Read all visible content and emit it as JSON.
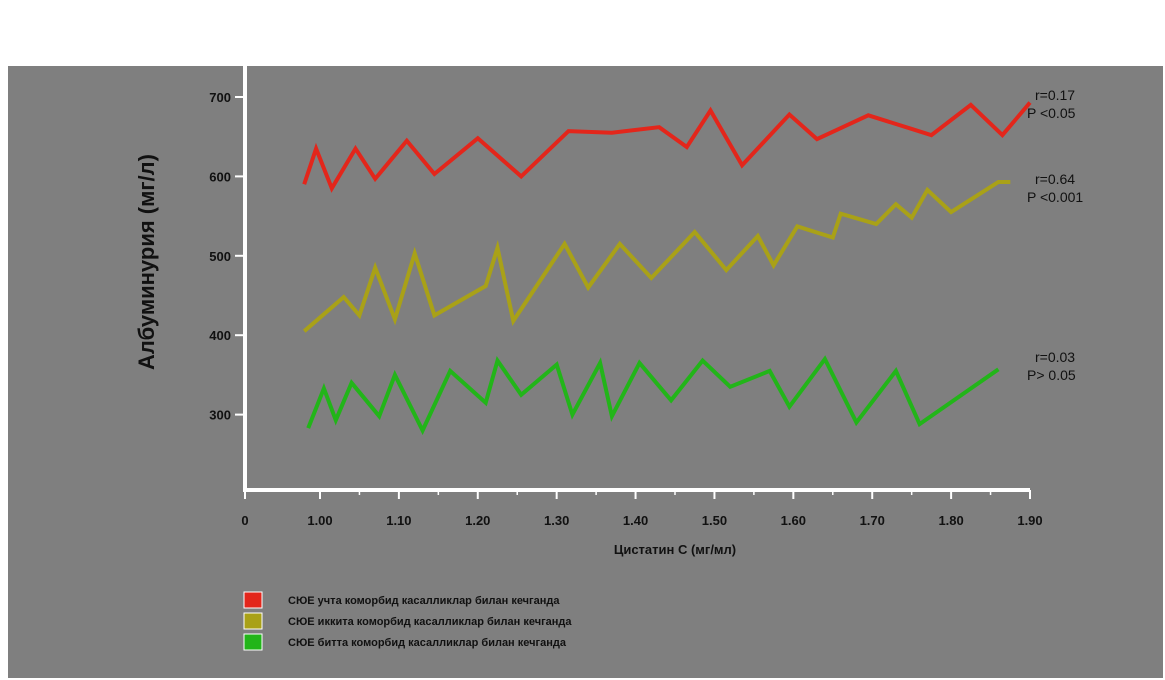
{
  "chart_data": {
    "type": "line",
    "xlabel": "Цистатин С (мг/мл)",
    "ylabel": "Албуминурия (мг/л)",
    "xlim": [
      0.97,
      1.9
    ],
    "ylim": [
      200,
      700
    ],
    "x_tick_labels": [
      "0",
      "1.00",
      "1.10",
      "1.20",
      "1.30",
      "1.40",
      "1.50",
      "1.60",
      "1.70",
      "1.80",
      "1.90"
    ],
    "y_tick_labels": [
      "700",
      "600",
      "500",
      "400",
      "300"
    ],
    "series": [
      {
        "name": "СЮЕ учта коморбид касалликлар билан кечганда",
        "color": "#e3261b",
        "annotation": [
          "r=0.17",
          "P <0.05"
        ],
        "points": [
          [
            0.98,
            590
          ],
          [
            0.995,
            635
          ],
          [
            1.015,
            585
          ],
          [
            1.045,
            635
          ],
          [
            1.07,
            597
          ],
          [
            1.11,
            645
          ],
          [
            1.145,
            603
          ],
          [
            1.2,
            648
          ],
          [
            1.255,
            600
          ],
          [
            1.315,
            657
          ],
          [
            1.37,
            655
          ],
          [
            1.43,
            662
          ],
          [
            1.465,
            637
          ],
          [
            1.495,
            683
          ],
          [
            1.535,
            614
          ],
          [
            1.595,
            678
          ],
          [
            1.63,
            647
          ],
          [
            1.695,
            677
          ],
          [
            1.775,
            652
          ],
          [
            1.825,
            690
          ],
          [
            1.865,
            652
          ],
          [
            1.9,
            693
          ]
        ]
      },
      {
        "name": "СЮЕ иккита коморбид касалликлар билан кечганда",
        "color": "#a9a117",
        "annotation": [
          "r=0.64",
          "P <0.001"
        ],
        "points": [
          [
            0.98,
            405
          ],
          [
            1.03,
            448
          ],
          [
            1.05,
            425
          ],
          [
            1.07,
            485
          ],
          [
            1.095,
            420
          ],
          [
            1.12,
            503
          ],
          [
            1.145,
            425
          ],
          [
            1.21,
            462
          ],
          [
            1.225,
            510
          ],
          [
            1.245,
            418
          ],
          [
            1.31,
            515
          ],
          [
            1.34,
            460
          ],
          [
            1.38,
            515
          ],
          [
            1.42,
            472
          ],
          [
            1.475,
            530
          ],
          [
            1.515,
            482
          ],
          [
            1.555,
            525
          ],
          [
            1.575,
            488
          ],
          [
            1.605,
            537
          ],
          [
            1.65,
            523
          ],
          [
            1.66,
            553
          ],
          [
            1.705,
            540
          ],
          [
            1.73,
            565
          ],
          [
            1.75,
            548
          ],
          [
            1.77,
            583
          ],
          [
            1.8,
            555
          ],
          [
            1.86,
            593
          ],
          [
            1.875,
            593
          ]
        ]
      },
      {
        "name": "СЮЕ битта коморбид касалликлар билан кечганда",
        "color": "#22b519",
        "annotation": [
          "r=0.03",
          "P> 0.05"
        ],
        "points": [
          [
            0.985,
            283
          ],
          [
            1.005,
            333
          ],
          [
            1.02,
            293
          ],
          [
            1.04,
            340
          ],
          [
            1.075,
            298
          ],
          [
            1.095,
            350
          ],
          [
            1.13,
            280
          ],
          [
            1.165,
            355
          ],
          [
            1.21,
            315
          ],
          [
            1.225,
            368
          ],
          [
            1.255,
            325
          ],
          [
            1.3,
            363
          ],
          [
            1.32,
            300
          ],
          [
            1.355,
            365
          ],
          [
            1.37,
            298
          ],
          [
            1.405,
            365
          ],
          [
            1.445,
            318
          ],
          [
            1.485,
            368
          ],
          [
            1.52,
            335
          ],
          [
            1.57,
            355
          ],
          [
            1.595,
            310
          ],
          [
            1.64,
            370
          ],
          [
            1.68,
            290
          ],
          [
            1.73,
            355
          ],
          [
            1.76,
            288
          ],
          [
            1.86,
            357
          ]
        ]
      }
    ]
  }
}
